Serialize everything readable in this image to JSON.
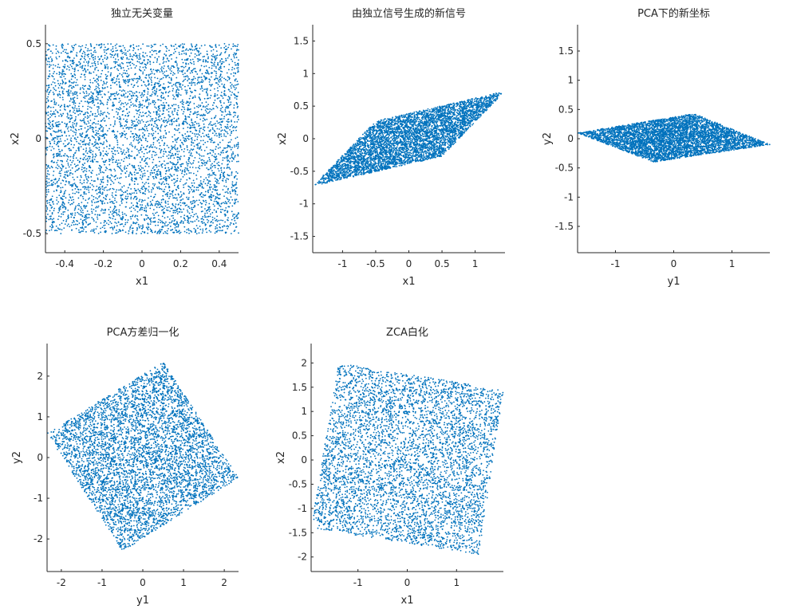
{
  "figure": {
    "background": "#ffffff",
    "point_color": "#0072BD"
  },
  "chart_data": [
    {
      "type": "scatter",
      "title": "独立无关变量",
      "xlabel": "x1",
      "ylabel": "x2",
      "xlim": [
        -0.5,
        0.5
      ],
      "ylim": [
        -0.6,
        0.6
      ],
      "xticks": [
        -0.4,
        -0.2,
        0,
        0.2,
        0.4
      ],
      "xtick_labels": [
        "-0.4",
        "-0.2",
        "0",
        "0.2",
        "0.4"
      ],
      "yticks": [
        -0.5,
        0,
        0.5
      ],
      "ytick_labels": [
        "-0.5",
        "0",
        "0.5"
      ],
      "region": {
        "shape": "polygon",
        "vertices": [
          [
            -0.5,
            -0.5
          ],
          [
            0.5,
            -0.5
          ],
          [
            0.5,
            0.5
          ],
          [
            -0.5,
            0.5
          ]
        ]
      },
      "n_points": 5000,
      "grid": false
    },
    {
      "type": "scatter",
      "title": "由独立信号生成的新信号",
      "xlabel": "x1",
      "ylabel": "x2",
      "xlim": [
        -1.45,
        1.45
      ],
      "ylim": [
        -1.75,
        1.75
      ],
      "xticks": [
        -1,
        -0.5,
        0,
        0.5,
        1
      ],
      "xtick_labels": [
        "-1",
        "-0.5",
        "0",
        "0.5",
        "1"
      ],
      "yticks": [
        -1.5,
        -1,
        -0.5,
        0,
        0.5,
        1,
        1.5
      ],
      "ytick_labels": [
        "-1.5",
        "-1",
        "-0.5",
        "0",
        "0.5",
        "1",
        "1.5"
      ],
      "region": {
        "shape": "polygon",
        "vertices": [
          [
            -1.45,
            -0.73
          ],
          [
            -0.5,
            0.27
          ],
          [
            1.45,
            0.73
          ],
          [
            0.5,
            -0.27
          ]
        ]
      },
      "n_points": 5000,
      "grid": false
    },
    {
      "type": "scatter",
      "title": "PCA下的新坐标",
      "xlabel": "y1",
      "ylabel": "y2",
      "xlim": [
        -1.65,
        1.65
      ],
      "ylim": [
        -1.95,
        1.95
      ],
      "xticks": [
        -1,
        0,
        1
      ],
      "xtick_labels": [
        "-1",
        "0",
        "1"
      ],
      "yticks": [
        -1.5,
        -1,
        -0.5,
        0,
        0.5,
        1,
        1.5
      ],
      "ytick_labels": [
        "-1.5",
        "-1",
        "-0.5",
        "0",
        "0.5",
        "1",
        "1.5"
      ],
      "region": {
        "shape": "polygon",
        "vertices": [
          [
            -1.65,
            0.1
          ],
          [
            0.35,
            0.43
          ],
          [
            1.65,
            -0.1
          ],
          [
            -0.35,
            -0.4
          ]
        ]
      },
      "n_points": 5000,
      "grid": false
    },
    {
      "type": "scatter",
      "title": "PCA方差归一化",
      "xlabel": "y1",
      "ylabel": "y2",
      "xlim": [
        -2.35,
        2.35
      ],
      "ylim": [
        -2.8,
        2.8
      ],
      "xticks": [
        -2,
        -1,
        0,
        1,
        2
      ],
      "xtick_labels": [
        "-2",
        "-1",
        "0",
        "1",
        "2"
      ],
      "yticks": [
        -2,
        -1,
        0,
        1,
        2
      ],
      "ytick_labels": [
        "-2",
        "-1",
        "0",
        "1",
        "2"
      ],
      "region": {
        "shape": "polygon",
        "vertices": [
          [
            -2.35,
            0.6
          ],
          [
            0.5,
            2.35
          ],
          [
            2.35,
            -0.5
          ],
          [
            -0.5,
            -2.3
          ]
        ]
      },
      "n_points": 5000,
      "grid": false
    },
    {
      "type": "scatter",
      "title": "ZCA白化",
      "xlabel": "x1",
      "ylabel": "x2",
      "xlim": [
        -1.95,
        1.95
      ],
      "ylim": [
        -2.3,
        2.4
      ],
      "xticks": [
        -1,
        0,
        1
      ],
      "xtick_labels": [
        "-1",
        "0",
        "1"
      ],
      "yticks": [
        -2,
        -1.5,
        -1,
        -0.5,
        0,
        0.5,
        1,
        1.5,
        2
      ],
      "ytick_labels": [
        "-2",
        "-1.5",
        "-1",
        "-0.5",
        "0",
        "0.5",
        "1",
        "1.5",
        "2"
      ],
      "region": {
        "shape": "polygon",
        "vertices": [
          [
            -1.4,
            2.0
          ],
          [
            1.95,
            1.45
          ],
          [
            1.45,
            -1.95
          ],
          [
            -1.95,
            -1.4
          ]
        ]
      },
      "n_points": 5000,
      "grid": false
    }
  ]
}
